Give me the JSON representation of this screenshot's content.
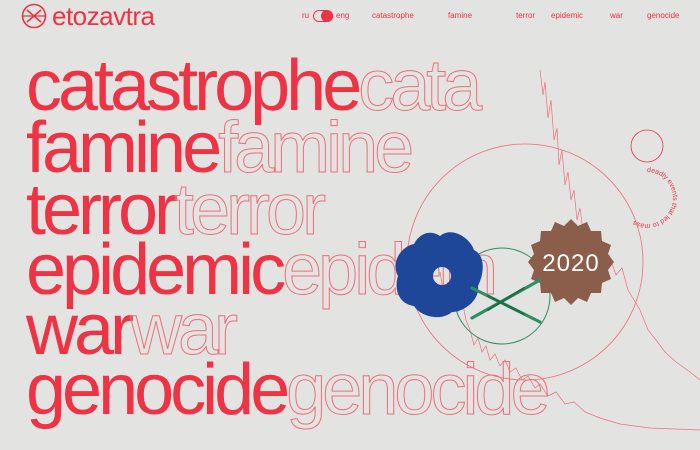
{
  "brand": {
    "name": "etozavtra",
    "color": "#ee3344"
  },
  "language": {
    "ru_label": "ru",
    "en_label": "eng",
    "active": "eng"
  },
  "nav": {
    "items": [
      {
        "label": "catastrophe"
      },
      {
        "label": "famine"
      },
      {
        "label": "terror"
      },
      {
        "label": "epidemic"
      },
      {
        "label": "war"
      },
      {
        "label": "genocide"
      }
    ]
  },
  "headline_words": [
    {
      "solid": "catastrophe",
      "ghost": "cata"
    },
    {
      "solid": "famine",
      "ghost": "famine"
    },
    {
      "solid": "terror",
      "ghost": "terror"
    },
    {
      "solid": "epidemic",
      "ghost": "epidem"
    },
    {
      "solid": "war",
      "ghost": "war"
    },
    {
      "solid": "genocide",
      "ghost": "genocide"
    }
  ],
  "circular_text": "deadly events that led to mass",
  "badge_year": "2020",
  "icons": {
    "logo": "x-circle-logo-icon",
    "badge": "gear-badge-icon",
    "blob": "blue-blob-icon"
  },
  "colors": {
    "accent": "#ee3344",
    "background": "#e3e3e1",
    "blue": "#1e4799",
    "brown": "#8a5e4b",
    "green": "#2e8f5f"
  }
}
